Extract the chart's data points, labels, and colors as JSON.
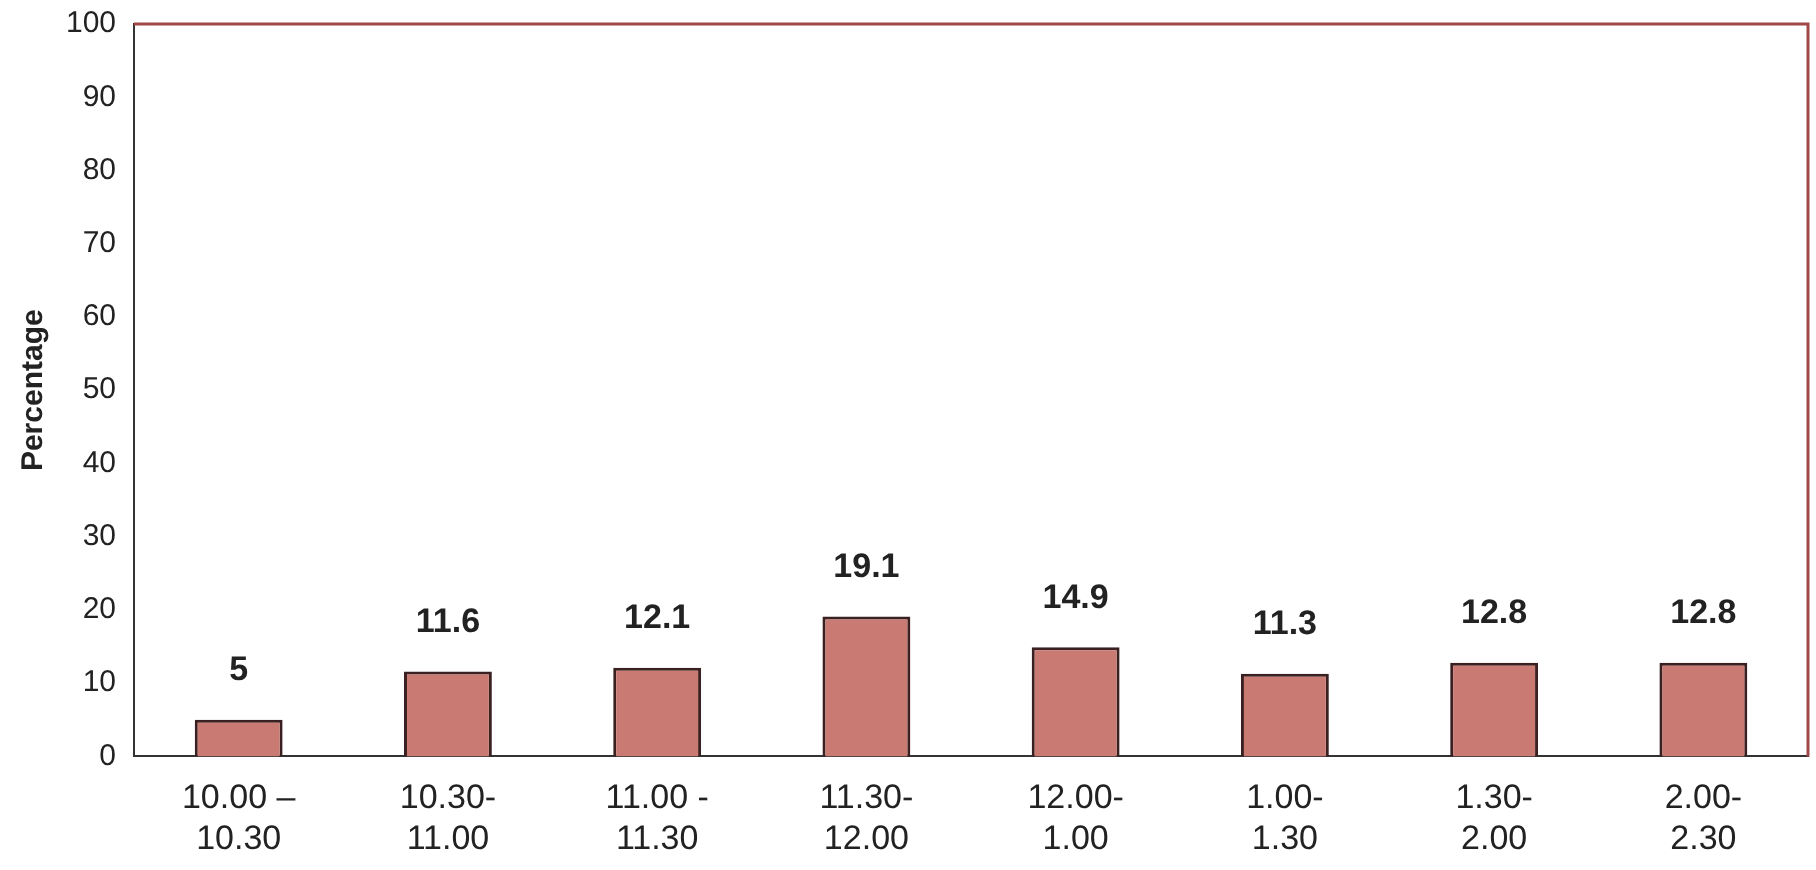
{
  "chart_data": {
    "type": "bar",
    "ylabel": "Percentage",
    "categories": [
      "10.00 –\n10.30",
      "10.30-\n11.00",
      "11.00 -\n11.30",
      "11.30-\n12.00",
      "12.00-\n1.00",
      "1.00-\n1.30",
      "1.30-\n2.00",
      "2.00-\n2.30"
    ],
    "values": [
      5,
      11.6,
      12.1,
      19.1,
      14.9,
      11.3,
      12.8,
      12.8
    ],
    "color": "#c97b73",
    "ylim": [
      0,
      100
    ],
    "yticks": [
      0,
      10,
      20,
      30,
      40,
      50,
      60,
      70,
      80,
      90,
      100
    ],
    "data_labels": true,
    "grid": false,
    "legend": false
  }
}
